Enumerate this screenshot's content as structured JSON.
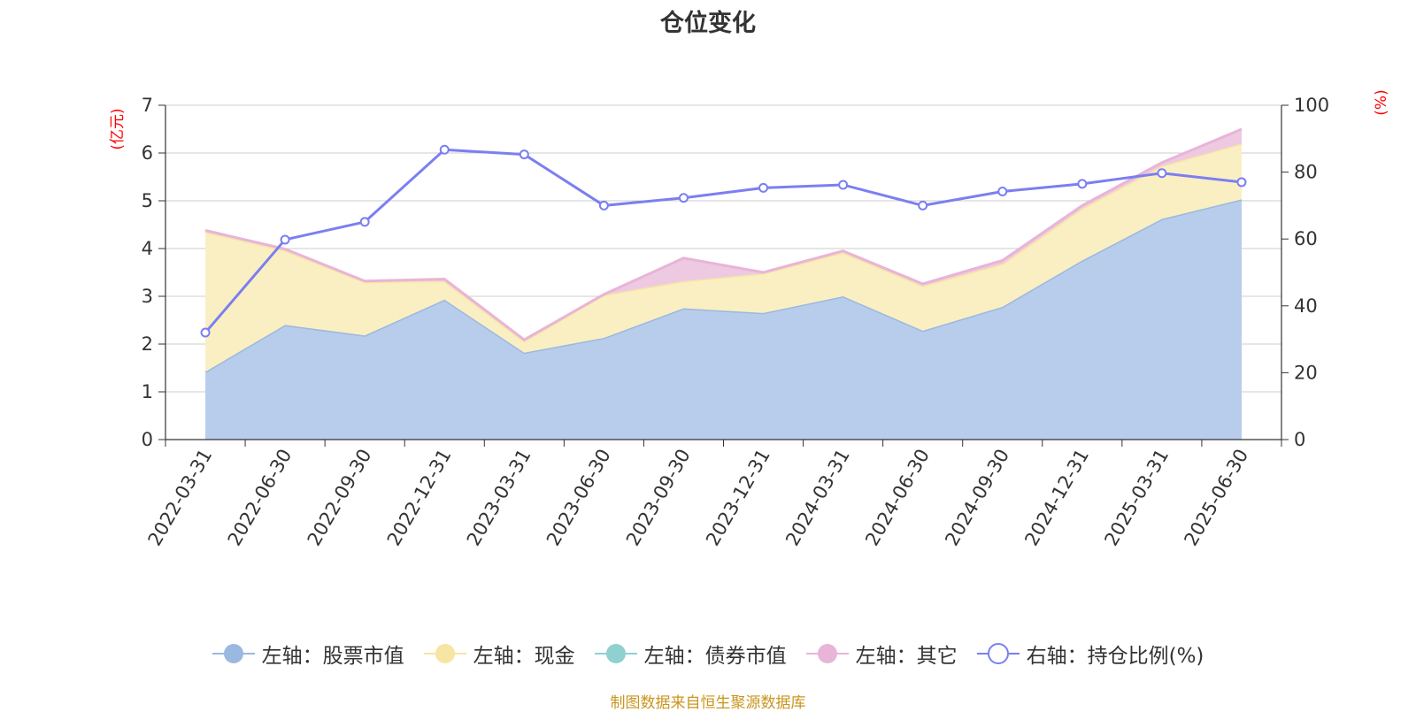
{
  "chart_data": {
    "type": "area",
    "title": "仓位变化",
    "categories": [
      "2022-03-31",
      "2022-06-30",
      "2022-09-30",
      "2022-12-31",
      "2023-03-31",
      "2023-06-30",
      "2023-09-30",
      "2023-12-31",
      "2024-03-31",
      "2024-06-30",
      "2024-09-30",
      "2024-12-31",
      "2025-03-31",
      "2025-06-30"
    ],
    "left_axis": {
      "unit": "(亿元)",
      "ylim": [
        0,
        7
      ],
      "ticks": [
        "0",
        "1",
        "2",
        "3",
        "4",
        "5",
        "6",
        "7"
      ]
    },
    "right_axis": {
      "unit": "(%)",
      "ylim": [
        0,
        100
      ],
      "ticks": [
        "0",
        "20",
        "40",
        "60",
        "80",
        "100"
      ]
    },
    "grid": true,
    "legend_position": "bottom",
    "stacked": true,
    "series": [
      {
        "name": "左轴：股票市值",
        "axis": "left",
        "color": "#9bb8e0",
        "fill": "#b8cdeb",
        "values": [
          1.42,
          2.4,
          2.18,
          2.93,
          1.82,
          2.13,
          2.75,
          2.65,
          3.0,
          2.28,
          2.78,
          3.75,
          4.62,
          5.03
        ]
      },
      {
        "name": "左轴：现金",
        "axis": "left",
        "color": "#f7e5a3",
        "fill": "#faefc2",
        "values": [
          2.93,
          1.56,
          1.12,
          0.39,
          0.24,
          0.9,
          0.57,
          0.83,
          0.92,
          0.94,
          0.9,
          1.09,
          1.11,
          1.17
        ]
      },
      {
        "name": "左轴：债券市值",
        "axis": "left",
        "color": "#8fd0d0",
        "fill": "#b5e0e0",
        "values": [
          0,
          0,
          0,
          0,
          0,
          0,
          0,
          0,
          0,
          0,
          0,
          0,
          0,
          0
        ]
      },
      {
        "name": "左轴：其它",
        "axis": "left",
        "color": "#e8b4d8",
        "fill": "#eec9e2",
        "values": [
          0.03,
          0.03,
          0.02,
          0.04,
          0.03,
          0.01,
          0.48,
          0.02,
          0.03,
          0.04,
          0.07,
          0.06,
          0.07,
          0.3
        ]
      },
      {
        "name": "右轴：持仓比例(%)",
        "axis": "right",
        "type": "line",
        "color": "#7b7ff0",
        "values": [
          32.0,
          59.8,
          65.1,
          86.7,
          85.3,
          70.0,
          72.3,
          75.3,
          76.2,
          70.0,
          74.2,
          76.5,
          79.7,
          77.0
        ]
      }
    ],
    "source_note": "制图数据来自恒生聚源数据库",
    "axis_color": "#333333",
    "grid_color": "#cccccc",
    "unit_color": "#ff0000",
    "source_color": "#c8961e"
  }
}
